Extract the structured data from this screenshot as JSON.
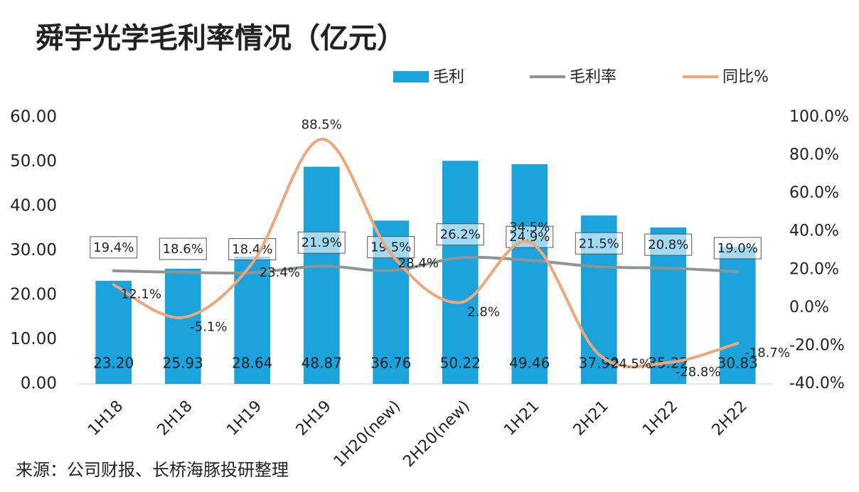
{
  "chart_data": {
    "type": "bar-line",
    "title": "舜宇光学毛利率情况（亿元）",
    "categories": [
      "1H18",
      "2H18",
      "1H19",
      "2H19",
      "1H20(new)",
      "2H20(new)",
      "1H21",
      "2H21",
      "1H22",
      "2H22"
    ],
    "series": [
      {
        "name": "毛利",
        "type": "bar",
        "color": "#1ba3dc",
        "values": [
          23.2,
          25.93,
          28.64,
          48.87,
          36.76,
          50.22,
          49.46,
          37.9,
          35.22,
          30.83
        ],
        "value_labels": [
          "23.20",
          "25.93",
          "28.64",
          "48.87",
          "36.76",
          "50.22",
          "49.46",
          "37.90",
          "35.22",
          "30.83"
        ]
      },
      {
        "name": "毛利率",
        "type": "line",
        "axis": "y2",
        "color": "#8f9496",
        "values": [
          19.4,
          18.6,
          18.4,
          21.9,
          19.5,
          26.2,
          24.9,
          21.5,
          20.8,
          19.0
        ],
        "value_labels": [
          "19.4%",
          "18.6%",
          "18.4%",
          "21.9%",
          "19.5%",
          "26.2%",
          "24.9%",
          "21.5%",
          "20.8%",
          "19.0%"
        ]
      },
      {
        "name": "同比%",
        "type": "line",
        "axis": "y2",
        "color": "#efa77a",
        "values": [
          12.1,
          -5.1,
          23.4,
          88.5,
          28.4,
          2.8,
          34.5,
          -24.5,
          -28.8,
          -18.7
        ],
        "value_labels": [
          "12.1%",
          "-5.1%",
          "23.4%",
          "88.5%",
          "28.4%",
          "2.8%",
          "34.5%",
          "-24.5%",
          "-28.8%",
          "-18.7%"
        ]
      }
    ],
    "ylim": [
      0,
      60
    ],
    "yticks": [
      {
        "value": 0,
        "label": "0.00"
      },
      {
        "value": 10,
        "label": "10.00"
      },
      {
        "value": 20,
        "label": "20.00"
      },
      {
        "value": 30,
        "label": "30.00"
      },
      {
        "value": 40,
        "label": "40.00"
      },
      {
        "value": 50,
        "label": "50.00"
      },
      {
        "value": 60,
        "label": "60.00"
      }
    ],
    "y2lim": [
      -40,
      100
    ],
    "y2ticks": [
      {
        "value": -40,
        "label": "-40.0%"
      },
      {
        "value": -20,
        "label": "-20.0%"
      },
      {
        "value": 0,
        "label": "0.0%"
      },
      {
        "value": 20,
        "label": "20.0%"
      },
      {
        "value": 40,
        "label": "40.0%"
      },
      {
        "value": 60,
        "label": "60.0%"
      },
      {
        "value": 80,
        "label": "80.0%"
      },
      {
        "value": 100,
        "label": "100.0%"
      }
    ],
    "legend": "top-right",
    "source": "来源：公司财报、长桥海豚投研整理"
  }
}
